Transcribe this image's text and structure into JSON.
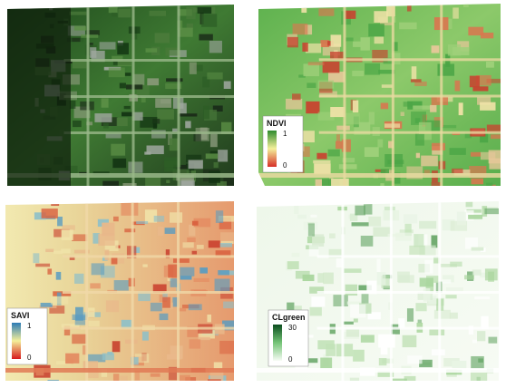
{
  "panels": [
    {
      "legend": null
    },
    {
      "legend": {
        "title": "NDVI",
        "max": 1,
        "min": 0
      }
    },
    {
      "legend": {
        "title": "SAVI",
        "max": 1,
        "min": 0
      }
    },
    {
      "legend": {
        "title": "CLgreen",
        "max": 30,
        "min": 0
      }
    }
  ]
}
